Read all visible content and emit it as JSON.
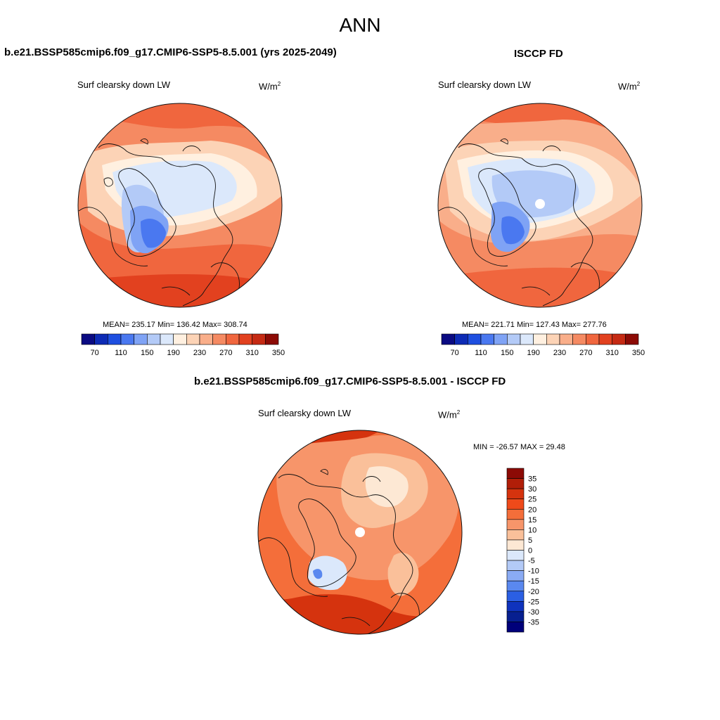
{
  "title": "ANN",
  "panels": [
    {
      "title": "b.e21.BSSP585cmip6.f09_g17.CMIP6-SSP5-8.5.001 (yrs 2025-2049)",
      "variable": "Surf clearsky down LW",
      "units": "W/m",
      "units_sup": "2",
      "stats": "MEAN= 235.17  Min= 136.42  Max= 308.74",
      "stats_values": {
        "mean": 235.17,
        "min": 136.42,
        "max": 308.74
      },
      "colorbar_labels": [
        "70",
        "110",
        "150",
        "190",
        "230",
        "270",
        "310",
        "350"
      ]
    },
    {
      "title": "ISCCP FD",
      "variable": "Surf clearsky down LW",
      "units": "W/m",
      "units_sup": "2",
      "stats": "MEAN= 221.71  Min= 127.43  Max= 277.76",
      "stats_values": {
        "mean": 221.71,
        "min": 127.43,
        "max": 277.76
      },
      "colorbar_labels": [
        "70",
        "110",
        "150",
        "190",
        "230",
        "270",
        "310",
        "350"
      ]
    }
  ],
  "diff": {
    "title": "b.e21.BSSP585cmip6.f09_g17.CMIP6-SSP5-8.5.001 - ISCCP FD",
    "variable": "Surf clearsky down LW",
    "units": "W/m",
    "units_sup": "2",
    "stats": "MIN = -26.57 MAX =  29.48",
    "stats_values": {
      "min": -26.57,
      "max": 29.48
    },
    "colorbar_labels": [
      "35",
      "30",
      "25",
      "20",
      "15",
      "10",
      "5",
      "0",
      "-5",
      "-10",
      "-15",
      "-20",
      "-25",
      "-30",
      "-35"
    ]
  },
  "colors": {
    "seq_scale": [
      "#0a0a82",
      "#0d2bb5",
      "#1e4fe0",
      "#4a78f0",
      "#7fa3f5",
      "#b3caf7",
      "#dbe8fb",
      "#fff0e0",
      "#fcd3b6",
      "#f9ae8a",
      "#f58a62",
      "#f0663e",
      "#e2411f",
      "#c52a13",
      "#8c0a05"
    ],
    "div_scale": [
      "#8c0a05",
      "#b11e08",
      "#d5330e",
      "#ef4a1a",
      "#f46e3a",
      "#f7956a",
      "#fac09a",
      "#fde8d4",
      "#dbe8fb",
      "#b3caf7",
      "#8aabf4",
      "#5a88ef",
      "#2b5fe3",
      "#0f33bd",
      "#071f90",
      "#00007a"
    ]
  }
}
